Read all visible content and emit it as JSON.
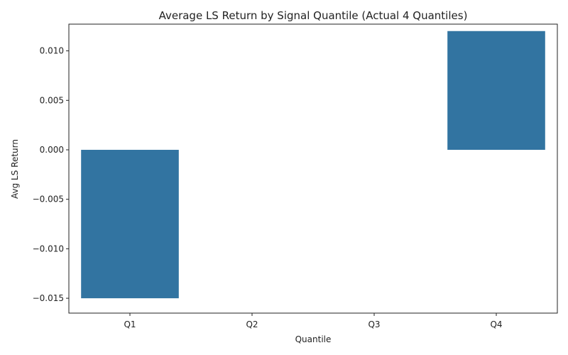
{
  "chart_data": {
    "type": "bar",
    "title": "Average LS Return by Signal Quantile (Actual 4 Quantiles)",
    "xlabel": "Quantile",
    "ylabel": "Avg LS Return",
    "categories": [
      "Q1",
      "Q2",
      "Q3",
      "Q4"
    ],
    "values": [
      -0.015,
      null,
      null,
      0.012
    ],
    "ylim": [
      -0.0165,
      0.0127
    ],
    "yticks": [
      -0.015,
      -0.01,
      -0.005,
      0.0,
      0.005,
      0.01
    ],
    "ytick_labels": [
      "−0.015",
      "−0.010",
      "−0.005",
      "0.000",
      "0.005",
      "0.010"
    ],
    "bar_color": "#3274a1",
    "grid": false,
    "legend": "none"
  }
}
